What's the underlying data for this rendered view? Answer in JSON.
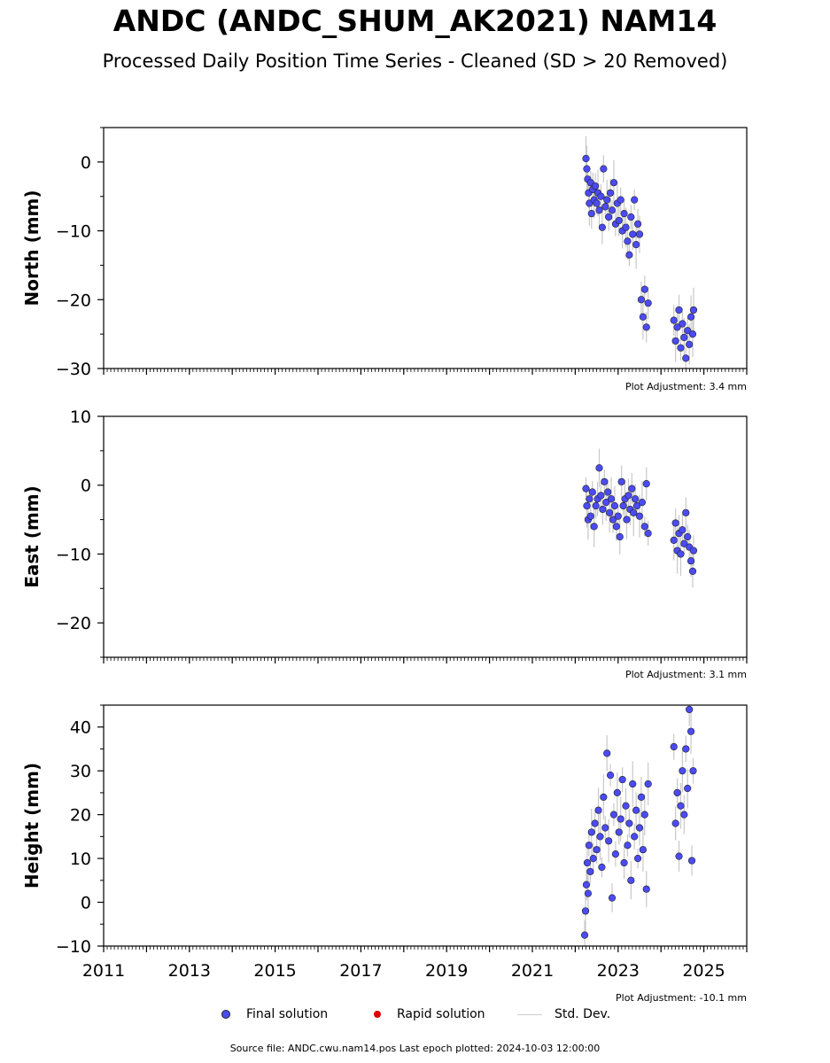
{
  "title": "ANDC (ANDC_SHUM_AK2021) NAM14",
  "subtitle": "Processed Daily Position Time Series - Cleaned (SD > 20 Removed)",
  "legend": {
    "final": "Final solution",
    "rapid": "Rapid solution",
    "std": "Std. Dev."
  },
  "footer": "Source file: ANDC.cwu.nam14.pos  Last epoch plotted: 2024-10-03 12:00:00",
  "colors": {
    "final": "#4b4bf5",
    "rapid": "#e00000",
    "stddev": "#c8c8c8"
  },
  "chart_data": [
    {
      "type": "scatter",
      "ylabel": "North (mm)",
      "xlim": [
        2011,
        2026
      ],
      "ylim": [
        -30,
        5
      ],
      "yticks": [
        0,
        -10,
        -20,
        -30
      ],
      "adjustment": "Plot Adjustment: 3.4 mm",
      "series": [
        {
          "name": "Final solution",
          "points": [
            [
              2022.25,
              0.5
            ],
            [
              2022.27,
              -1.0
            ],
            [
              2022.29,
              -2.5
            ],
            [
              2022.31,
              -4.5
            ],
            [
              2022.33,
              -6.0
            ],
            [
              2022.36,
              -3.0
            ],
            [
              2022.38,
              -7.5
            ],
            [
              2022.41,
              -4.0
            ],
            [
              2022.44,
              -5.5
            ],
            [
              2022.47,
              -3.5
            ],
            [
              2022.5,
              -6.0
            ],
            [
              2022.53,
              -4.5
            ],
            [
              2022.56,
              -7.0
            ],
            [
              2022.6,
              -5.0
            ],
            [
              2022.63,
              -9.5
            ],
            [
              2022.66,
              -1.0
            ],
            [
              2022.7,
              -6.5
            ],
            [
              2022.74,
              -5.5
            ],
            [
              2022.78,
              -8.0
            ],
            [
              2022.82,
              -4.5
            ],
            [
              2022.86,
              -7.0
            ],
            [
              2022.9,
              -3.0
            ],
            [
              2022.94,
              -9.0
            ],
            [
              2022.98,
              -6.0
            ],
            [
              2023.02,
              -8.5
            ],
            [
              2023.06,
              -5.5
            ],
            [
              2023.1,
              -10.0
            ],
            [
              2023.14,
              -7.5
            ],
            [
              2023.18,
              -9.5
            ],
            [
              2023.22,
              -11.5
            ],
            [
              2023.26,
              -13.5
            ],
            [
              2023.3,
              -8.0
            ],
            [
              2023.34,
              -10.5
            ],
            [
              2023.38,
              -5.5
            ],
            [
              2023.42,
              -12.0
            ],
            [
              2023.46,
              -9.0
            ],
            [
              2023.5,
              -10.5
            ],
            [
              2023.54,
              -20.0
            ],
            [
              2023.58,
              -22.5
            ],
            [
              2023.62,
              -18.5
            ],
            [
              2023.66,
              -24.0
            ],
            [
              2023.7,
              -20.5
            ],
            [
              2024.3,
              -23.0
            ],
            [
              2024.34,
              -26.0
            ],
            [
              2024.38,
              -24.0
            ],
            [
              2024.42,
              -21.5
            ],
            [
              2024.46,
              -27.0
            ],
            [
              2024.5,
              -23.5
            ],
            [
              2024.54,
              -25.5
            ],
            [
              2024.58,
              -28.5
            ],
            [
              2024.62,
              -24.5
            ],
            [
              2024.66,
              -26.5
            ],
            [
              2024.7,
              -22.5
            ],
            [
              2024.74,
              -25.0
            ],
            [
              2024.76,
              -21.5
            ]
          ]
        }
      ]
    },
    {
      "type": "scatter",
      "ylabel": "East (mm)",
      "xlim": [
        2011,
        2026
      ],
      "ylim": [
        -25,
        10
      ],
      "yticks": [
        10,
        0,
        -10,
        -20
      ],
      "adjustment": "Plot Adjustment: 3.1 mm",
      "series": [
        {
          "name": "Final solution",
          "points": [
            [
              2022.25,
              -0.5
            ],
            [
              2022.27,
              -3.0
            ],
            [
              2022.3,
              -5.0
            ],
            [
              2022.33,
              -2.0
            ],
            [
              2022.36,
              -4.5
            ],
            [
              2022.4,
              -1.0
            ],
            [
              2022.44,
              -6.0
            ],
            [
              2022.48,
              -3.0
            ],
            [
              2022.52,
              -2.0
            ],
            [
              2022.56,
              2.5
            ],
            [
              2022.6,
              -1.5
            ],
            [
              2022.64,
              -3.5
            ],
            [
              2022.68,
              0.5
            ],
            [
              2022.72,
              -2.5
            ],
            [
              2022.76,
              -1.0
            ],
            [
              2022.8,
              -4.0
            ],
            [
              2022.84,
              -2.0
            ],
            [
              2022.88,
              -5.0
            ],
            [
              2022.92,
              -3.0
            ],
            [
              2022.96,
              -6.0
            ],
            [
              2023.0,
              -4.5
            ],
            [
              2023.04,
              -7.5
            ],
            [
              2023.08,
              0.5
            ],
            [
              2023.12,
              -3.0
            ],
            [
              2023.16,
              -2.0
            ],
            [
              2023.2,
              -5.0
            ],
            [
              2023.24,
              -1.5
            ],
            [
              2023.28,
              -3.5
            ],
            [
              2023.32,
              -0.5
            ],
            [
              2023.36,
              -4.0
            ],
            [
              2023.4,
              -2.0
            ],
            [
              2023.44,
              -3.0
            ],
            [
              2023.5,
              -4.5
            ],
            [
              2023.56,
              -2.5
            ],
            [
              2023.62,
              -6.0
            ],
            [
              2023.66,
              0.2
            ],
            [
              2023.7,
              -7.0
            ],
            [
              2024.3,
              -8.0
            ],
            [
              2024.34,
              -5.5
            ],
            [
              2024.38,
              -9.5
            ],
            [
              2024.42,
              -7.0
            ],
            [
              2024.46,
              -10.0
            ],
            [
              2024.5,
              -6.5
            ],
            [
              2024.54,
              -8.5
            ],
            [
              2024.58,
              -4.0
            ],
            [
              2024.62,
              -7.5
            ],
            [
              2024.66,
              -9.0
            ],
            [
              2024.7,
              -11.0
            ],
            [
              2024.74,
              -12.5
            ],
            [
              2024.76,
              -9.5
            ]
          ]
        }
      ]
    },
    {
      "type": "scatter",
      "ylabel": "Height (mm)",
      "xlim": [
        2011,
        2026
      ],
      "ylim": [
        -10,
        45
      ],
      "yticks": [
        40,
        30,
        20,
        10,
        0,
        -10
      ],
      "xticks": [
        2011,
        2013,
        2015,
        2017,
        2019,
        2021,
        2023,
        2025
      ],
      "adjustment": "Plot Adjustment: -10.1 mm",
      "series": [
        {
          "name": "Final solution",
          "points": [
            [
              2022.22,
              -7.5
            ],
            [
              2022.24,
              -2.0
            ],
            [
              2022.26,
              4.0
            ],
            [
              2022.28,
              9.0
            ],
            [
              2022.3,
              2.0
            ],
            [
              2022.32,
              13.0
            ],
            [
              2022.35,
              7.0
            ],
            [
              2022.38,
              16.0
            ],
            [
              2022.42,
              10.0
            ],
            [
              2022.46,
              18.0
            ],
            [
              2022.5,
              12.0
            ],
            [
              2022.54,
              21.0
            ],
            [
              2022.58,
              15.0
            ],
            [
              2022.62,
              8.0
            ],
            [
              2022.66,
              24.0
            ],
            [
              2022.7,
              17.0
            ],
            [
              2022.74,
              34.0
            ],
            [
              2022.78,
              14.0
            ],
            [
              2022.82,
              29.0
            ],
            [
              2022.86,
              1.0
            ],
            [
              2022.9,
              20.0
            ],
            [
              2022.94,
              11.0
            ],
            [
              2022.98,
              25.0
            ],
            [
              2023.02,
              16.0
            ],
            [
              2023.06,
              19.0
            ],
            [
              2023.1,
              28.0
            ],
            [
              2023.14,
              9.0
            ],
            [
              2023.18,
              22.0
            ],
            [
              2023.22,
              13.0
            ],
            [
              2023.26,
              18.0
            ],
            [
              2023.3,
              5.0
            ],
            [
              2023.34,
              27.0
            ],
            [
              2023.38,
              15.0
            ],
            [
              2023.42,
              21.0
            ],
            [
              2023.46,
              10.0
            ],
            [
              2023.5,
              17.0
            ],
            [
              2023.54,
              24.0
            ],
            [
              2023.58,
              12.0
            ],
            [
              2023.62,
              20.0
            ],
            [
              2023.66,
              3.0
            ],
            [
              2023.7,
              27.0
            ],
            [
              2024.3,
              35.5
            ],
            [
              2024.34,
              18.0
            ],
            [
              2024.38,
              25.0
            ],
            [
              2024.42,
              10.5
            ],
            [
              2024.46,
              22.0
            ],
            [
              2024.5,
              30.0
            ],
            [
              2024.54,
              20.0
            ],
            [
              2024.58,
              35.0
            ],
            [
              2024.62,
              26.0
            ],
            [
              2024.66,
              44.0
            ],
            [
              2024.7,
              39.0
            ],
            [
              2024.72,
              9.5
            ],
            [
              2024.75,
              30.0
            ]
          ]
        }
      ]
    }
  ]
}
